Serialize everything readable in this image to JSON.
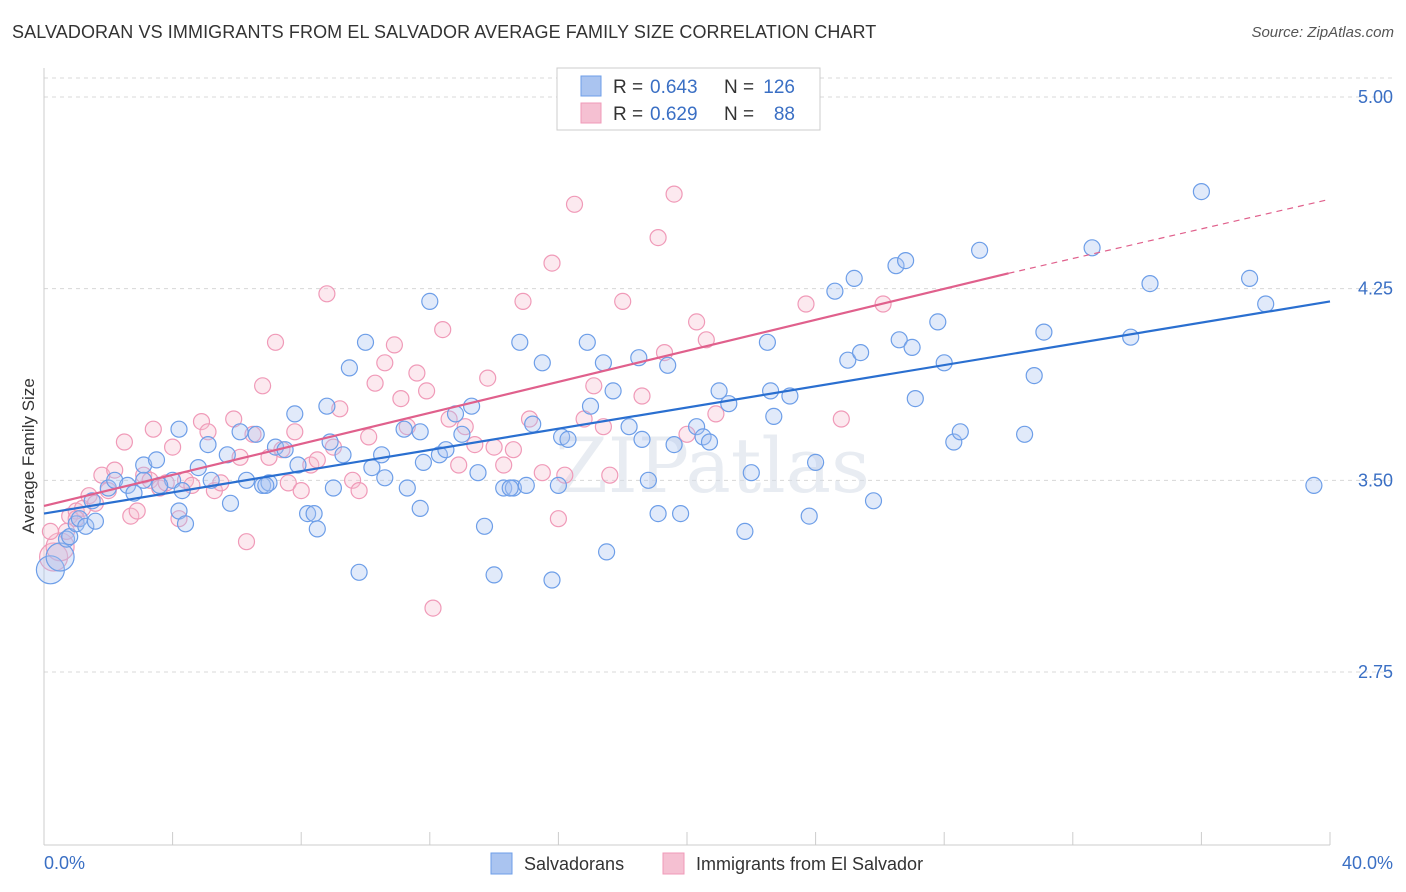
{
  "title": "SALVADORAN VS IMMIGRANTS FROM EL SALVADOR AVERAGE FAMILY SIZE CORRELATION CHART",
  "source": "Source: ZipAtlas.com",
  "watermark": "ZIPatlas",
  "colors": {
    "blue": "#6d9ee8",
    "blue_fill": "#aac4f0",
    "blue_line": "#2a6fd0",
    "pink": "#f09ab8",
    "pink_fill": "#f5c0d2",
    "pink_line": "#e0608c",
    "tick_text": "#3a6fc4",
    "grid": "#d8d8d8"
  },
  "legend": {
    "r_label": "R =",
    "n_label": "N =",
    "rows": [
      {
        "r": "0.643",
        "n": "126"
      },
      {
        "r": "0.629",
        "n": "88"
      }
    ]
  },
  "chart_data": {
    "type": "scatter",
    "title": "SALVADORAN VS IMMIGRANTS FROM EL SALVADOR AVERAGE FAMILY SIZE CORRELATION CHART",
    "xlabel": "",
    "ylabel": "Average Family Size",
    "xlim": [
      0,
      40
    ],
    "ylim": [
      2.0,
      5.1
    ],
    "x_tick_labels": [
      "0.0%",
      "40.0%"
    ],
    "y_ticks": [
      2.75,
      3.5,
      4.25,
      5.0
    ],
    "y_tick_labels": [
      "2.75",
      "3.50",
      "4.25",
      "5.00"
    ],
    "grid": "horizontal dashed",
    "legend_position": "top-center",
    "series": [
      {
        "name": "Salvadorans",
        "r": 0.643,
        "n": 126,
        "trend": {
          "x0": 0,
          "y0": 3.37,
          "x1": 40,
          "y1": 4.2
        },
        "points": [
          [
            0.2,
            3.15
          ],
          [
            0.5,
            3.2
          ],
          [
            0.7,
            3.27
          ],
          [
            0.8,
            3.28
          ],
          [
            1.0,
            3.33
          ],
          [
            1.1,
            3.35
          ],
          [
            1.3,
            3.32
          ],
          [
            1.6,
            3.34
          ],
          [
            1.5,
            3.42
          ],
          [
            2.0,
            3.47
          ],
          [
            2.2,
            3.5
          ],
          [
            2.6,
            3.48
          ],
          [
            2.8,
            3.45
          ],
          [
            3.1,
            3.5
          ],
          [
            3.1,
            3.56
          ],
          [
            3.5,
            3.58
          ],
          [
            4.0,
            3.5
          ],
          [
            4.3,
            3.46
          ],
          [
            4.2,
            3.7
          ],
          [
            4.2,
            3.38
          ],
          [
            4.4,
            3.33
          ],
          [
            4.8,
            3.55
          ],
          [
            5.1,
            3.64
          ],
          [
            5.2,
            3.5
          ],
          [
            5.7,
            3.6
          ],
          [
            5.8,
            3.41
          ],
          [
            6.1,
            3.69
          ],
          [
            6.3,
            3.5
          ],
          [
            6.6,
            3.68
          ],
          [
            6.8,
            3.48
          ],
          [
            7.0,
            3.49
          ],
          [
            7.2,
            3.63
          ],
          [
            7.5,
            3.62
          ],
          [
            7.8,
            3.76
          ],
          [
            7.9,
            3.56
          ],
          [
            8.2,
            3.37
          ],
          [
            8.4,
            3.37
          ],
          [
            8.5,
            3.31
          ],
          [
            8.8,
            3.79
          ],
          [
            8.9,
            3.65
          ],
          [
            9.3,
            3.6
          ],
          [
            9.5,
            3.94
          ],
          [
            9.8,
            3.14
          ],
          [
            10.0,
            4.04
          ],
          [
            10.2,
            3.55
          ],
          [
            10.6,
            3.51
          ],
          [
            10.5,
            3.6
          ],
          [
            11.2,
            3.7
          ],
          [
            11.3,
            3.47
          ],
          [
            11.7,
            3.69
          ],
          [
            11.7,
            3.39
          ],
          [
            11.8,
            3.57
          ],
          [
            12.0,
            4.2
          ],
          [
            12.3,
            3.6
          ],
          [
            12.5,
            3.62
          ],
          [
            12.8,
            3.76
          ],
          [
            13.0,
            3.68
          ],
          [
            13.3,
            3.79
          ],
          [
            13.5,
            3.53
          ],
          [
            13.7,
            3.32
          ],
          [
            14.0,
            3.13
          ],
          [
            14.3,
            3.47
          ],
          [
            14.6,
            3.47
          ],
          [
            14.8,
            4.04
          ],
          [
            15.0,
            3.48
          ],
          [
            15.2,
            3.72
          ],
          [
            15.5,
            3.96
          ],
          [
            15.8,
            3.11
          ],
          [
            16.1,
            3.67
          ],
          [
            16.3,
            3.66
          ],
          [
            16.0,
            3.48
          ],
          [
            16.9,
            4.04
          ],
          [
            17.0,
            3.79
          ],
          [
            17.4,
            3.96
          ],
          [
            17.7,
            3.85
          ],
          [
            17.5,
            3.22
          ],
          [
            18.2,
            3.71
          ],
          [
            18.5,
            3.98
          ],
          [
            18.6,
            3.66
          ],
          [
            18.8,
            3.5
          ],
          [
            19.1,
            3.37
          ],
          [
            19.4,
            3.95
          ],
          [
            19.6,
            3.64
          ],
          [
            19.8,
            3.37
          ],
          [
            20.3,
            3.71
          ],
          [
            20.5,
            3.67
          ],
          [
            20.7,
            3.65
          ],
          [
            21.0,
            3.85
          ],
          [
            21.3,
            3.8
          ],
          [
            21.8,
            3.3
          ],
          [
            22.0,
            3.53
          ],
          [
            22.5,
            4.04
          ],
          [
            22.6,
            3.85
          ],
          [
            22.7,
            3.75
          ],
          [
            23.2,
            3.83
          ],
          [
            23.8,
            3.36
          ],
          [
            24.0,
            3.57
          ],
          [
            24.6,
            4.24
          ],
          [
            25.0,
            3.97
          ],
          [
            25.2,
            4.29
          ],
          [
            25.4,
            4.0
          ],
          [
            25.8,
            3.42
          ],
          [
            26.5,
            4.34
          ],
          [
            26.6,
            4.05
          ],
          [
            26.8,
            4.36
          ],
          [
            27.0,
            4.02
          ],
          [
            27.1,
            3.82
          ],
          [
            27.8,
            4.12
          ],
          [
            28.0,
            3.96
          ],
          [
            28.3,
            3.65
          ],
          [
            28.5,
            3.69
          ],
          [
            29.1,
            4.4
          ],
          [
            30.5,
            3.68
          ],
          [
            30.8,
            3.91
          ],
          [
            31.1,
            4.08
          ],
          [
            32.6,
            4.41
          ],
          [
            33.8,
            4.06
          ],
          [
            34.4,
            4.27
          ],
          [
            36.0,
            4.63
          ],
          [
            37.5,
            4.29
          ],
          [
            38.0,
            4.19
          ],
          [
            39.5,
            3.48
          ],
          [
            14.5,
            3.47
          ],
          [
            9.0,
            3.47
          ],
          [
            3.6,
            3.48
          ],
          [
            6.9,
            3.48
          ]
        ]
      },
      {
        "name": "Immigrants from El Salvador",
        "r": 0.629,
        "n": 88,
        "trend": {
          "x0": 0,
          "y0": 3.4,
          "x1": 30,
          "y1": 4.31
        },
        "trend_dashed": {
          "x0": 30,
          "y0": 4.31,
          "x1": 40,
          "y1": 4.6
        },
        "points": [
          [
            0.3,
            3.2
          ],
          [
            0.5,
            3.24
          ],
          [
            0.7,
            3.3
          ],
          [
            0.8,
            3.36
          ],
          [
            1.0,
            3.38
          ],
          [
            1.2,
            3.39
          ],
          [
            1.4,
            3.44
          ],
          [
            1.6,
            3.41
          ],
          [
            1.8,
            3.52
          ],
          [
            2.0,
            3.46
          ],
          [
            2.2,
            3.54
          ],
          [
            2.5,
            3.65
          ],
          [
            2.7,
            3.36
          ],
          [
            2.9,
            3.38
          ],
          [
            3.1,
            3.52
          ],
          [
            3.3,
            3.5
          ],
          [
            3.4,
            3.7
          ],
          [
            3.6,
            3.47
          ],
          [
            3.8,
            3.49
          ],
          [
            4.0,
            3.63
          ],
          [
            4.2,
            3.35
          ],
          [
            4.4,
            3.5
          ],
          [
            4.6,
            3.48
          ],
          [
            4.9,
            3.73
          ],
          [
            5.1,
            3.69
          ],
          [
            5.3,
            3.46
          ],
          [
            5.5,
            3.49
          ],
          [
            5.9,
            3.74
          ],
          [
            6.1,
            3.59
          ],
          [
            6.3,
            3.26
          ],
          [
            6.5,
            3.68
          ],
          [
            6.8,
            3.87
          ],
          [
            7.0,
            3.59
          ],
          [
            7.2,
            4.04
          ],
          [
            7.4,
            3.62
          ],
          [
            7.6,
            3.49
          ],
          [
            7.8,
            3.69
          ],
          [
            8.0,
            3.46
          ],
          [
            8.3,
            3.56
          ],
          [
            8.5,
            3.58
          ],
          [
            8.8,
            4.23
          ],
          [
            9.0,
            3.63
          ],
          [
            9.2,
            3.78
          ],
          [
            9.6,
            3.5
          ],
          [
            9.8,
            3.46
          ],
          [
            10.1,
            3.67
          ],
          [
            10.3,
            3.88
          ],
          [
            10.6,
            3.96
          ],
          [
            10.9,
            4.03
          ],
          [
            11.1,
            3.82
          ],
          [
            11.3,
            3.71
          ],
          [
            11.6,
            3.92
          ],
          [
            11.9,
            3.85
          ],
          [
            12.1,
            3.0
          ],
          [
            12.4,
            4.09
          ],
          [
            12.6,
            3.74
          ],
          [
            12.9,
            3.56
          ],
          [
            13.1,
            3.71
          ],
          [
            13.4,
            3.64
          ],
          [
            13.8,
            3.9
          ],
          [
            14.0,
            3.63
          ],
          [
            14.3,
            3.56
          ],
          [
            14.6,
            3.62
          ],
          [
            14.9,
            4.2
          ],
          [
            15.1,
            3.74
          ],
          [
            15.5,
            3.53
          ],
          [
            15.8,
            4.35
          ],
          [
            16.0,
            3.35
          ],
          [
            16.2,
            3.52
          ],
          [
            16.5,
            4.58
          ],
          [
            16.8,
            3.74
          ],
          [
            17.1,
            3.87
          ],
          [
            17.4,
            3.71
          ],
          [
            17.6,
            3.52
          ],
          [
            18.0,
            4.2
          ],
          [
            18.6,
            3.83
          ],
          [
            19.1,
            4.45
          ],
          [
            19.3,
            4.0
          ],
          [
            19.6,
            4.62
          ],
          [
            20.0,
            3.68
          ],
          [
            20.3,
            4.12
          ],
          [
            20.6,
            4.05
          ],
          [
            20.9,
            3.76
          ],
          [
            23.7,
            4.19
          ],
          [
            24.8,
            3.74
          ],
          [
            26.1,
            4.19
          ],
          [
            0.2,
            3.3
          ],
          [
            1.0,
            3.35
          ]
        ]
      }
    ]
  },
  "bottom_legend": [
    {
      "label": "Salvadorans"
    },
    {
      "label": "Immigrants from El Salvador"
    }
  ]
}
